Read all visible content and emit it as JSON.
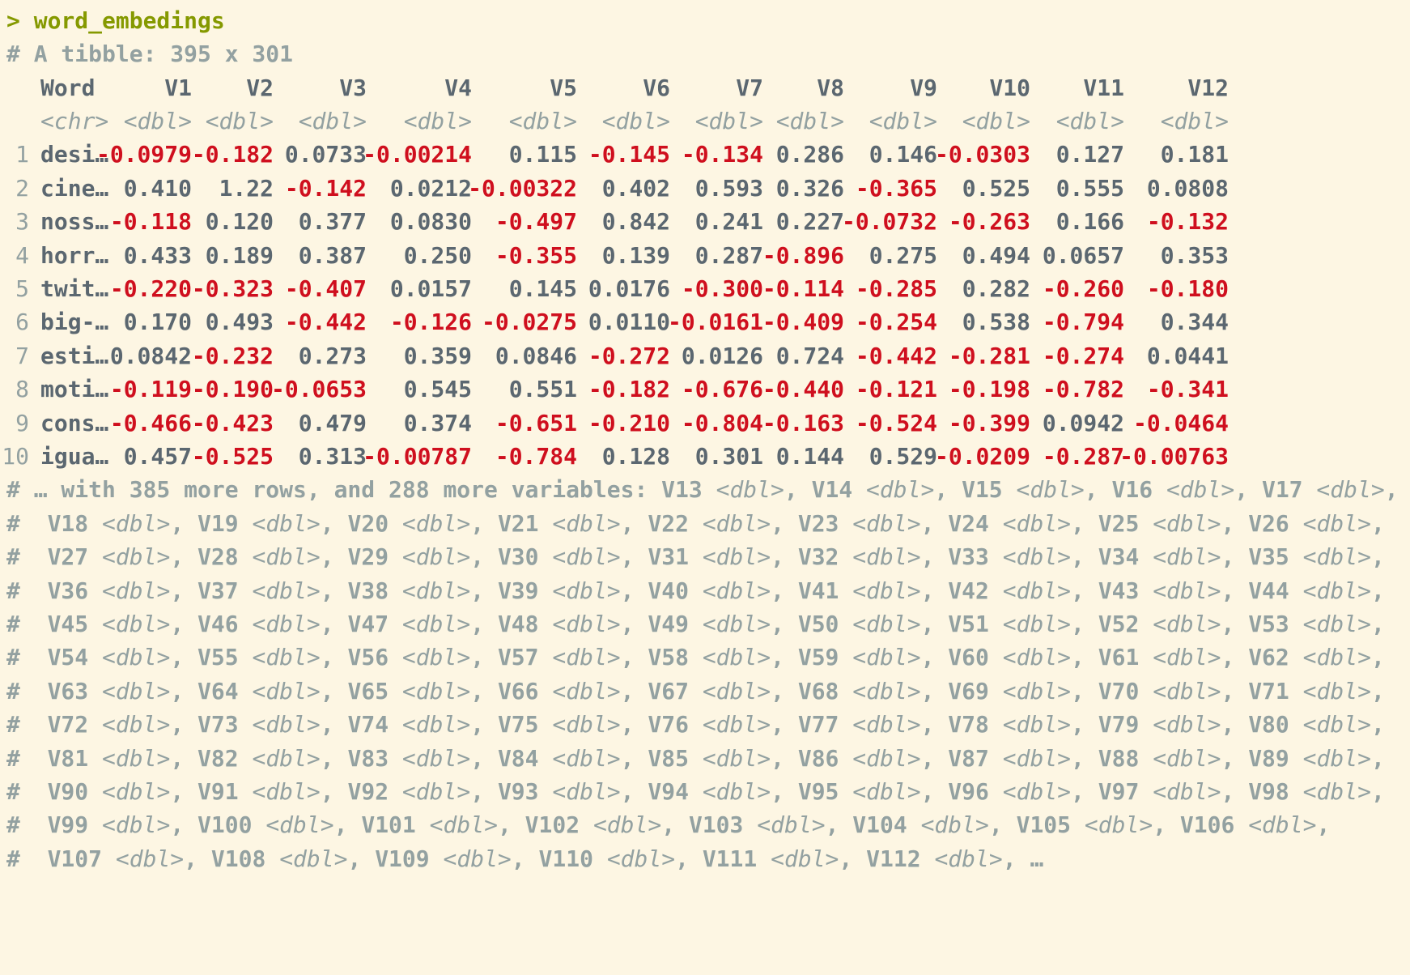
{
  "console": {
    "prompt": "> word_embedings",
    "tibble_header": "# A tibble: 395 x 301"
  },
  "table": {
    "columns": [
      "Word",
      "V1",
      "V2",
      "V3",
      "V4",
      "V5",
      "V6",
      "V7",
      "V8",
      "V9",
      "V10",
      "V11",
      "V12"
    ],
    "types": [
      "<chr>",
      "<dbl>",
      "<dbl>",
      "<dbl>",
      "<dbl>",
      "<dbl>",
      "<dbl>",
      "<dbl>",
      "<dbl>",
      "<dbl>",
      "<dbl>",
      "<dbl>",
      "<dbl>"
    ],
    "rows": [
      {
        "n": "1",
        "word": "desi…",
        "vals": [
          "-0.0979",
          "-0.182",
          "0.0733",
          "-0.00214",
          "0.115",
          "-0.145",
          "-0.134",
          "0.286",
          "0.146",
          "-0.0303",
          "0.127",
          "0.181"
        ]
      },
      {
        "n": "2",
        "word": "cine…",
        "vals": [
          "0.410",
          "1.22",
          "-0.142",
          "0.0212",
          "-0.00322",
          "0.402",
          "0.593",
          "0.326",
          "-0.365",
          "0.525",
          "0.555",
          "0.0808"
        ]
      },
      {
        "n": "3",
        "word": "noss…",
        "vals": [
          "-0.118",
          "0.120",
          "0.377",
          "0.0830",
          "-0.497",
          "0.842",
          "0.241",
          "0.227",
          "-0.0732",
          "-0.263",
          "0.166",
          "-0.132"
        ]
      },
      {
        "n": "4",
        "word": "horr…",
        "vals": [
          "0.433",
          "0.189",
          "0.387",
          "0.250",
          "-0.355",
          "0.139",
          "0.287",
          "-0.896",
          "0.275",
          "0.494",
          "0.0657",
          "0.353"
        ]
      },
      {
        "n": "5",
        "word": "twit…",
        "vals": [
          "-0.220",
          "-0.323",
          "-0.407",
          "0.0157",
          "0.145",
          "0.0176",
          "-0.300",
          "-0.114",
          "-0.285",
          "0.282",
          "-0.260",
          "-0.180"
        ]
      },
      {
        "n": "6",
        "word": "big-…",
        "vals": [
          "0.170",
          "0.493",
          "-0.442",
          "-0.126",
          "-0.0275",
          "0.0110",
          "-0.0161",
          "-0.409",
          "-0.254",
          "0.538",
          "-0.794",
          "0.344"
        ]
      },
      {
        "n": "7",
        "word": "esti…",
        "vals": [
          "0.0842",
          "-0.232",
          "0.273",
          "0.359",
          "0.0846",
          "-0.272",
          "0.0126",
          "0.724",
          "-0.442",
          "-0.281",
          "-0.274",
          "0.0441"
        ]
      },
      {
        "n": "8",
        "word": "moti…",
        "vals": [
          "-0.119",
          "-0.190",
          "-0.0653",
          "0.545",
          "0.551",
          "-0.182",
          "-0.676",
          "-0.440",
          "-0.121",
          "-0.198",
          "-0.782",
          "-0.341"
        ]
      },
      {
        "n": "9",
        "word": "cons…",
        "vals": [
          "-0.466",
          "-0.423",
          "0.479",
          "0.374",
          "-0.651",
          "-0.210",
          "-0.804",
          "-0.163",
          "-0.524",
          "-0.399",
          "0.0942",
          "-0.0464"
        ]
      },
      {
        "n": "10",
        "word": "igua…",
        "vals": [
          "0.457",
          "-0.525",
          "0.313",
          "-0.00787",
          "-0.784",
          "0.128",
          "0.301",
          "0.144",
          "0.529",
          "-0.0209",
          "-0.287",
          "-0.00763"
        ]
      }
    ]
  },
  "footer": {
    "summary_prefix": "# … with 385 more rows, and 288 more variables: ",
    "type_label": "<dbl>",
    "first_line_vars": [
      "V13",
      "V14",
      "V15",
      "V16",
      "V17"
    ],
    "lines": [
      [
        "V18",
        "V19",
        "V20",
        "V21",
        "V22",
        "V23",
        "V24",
        "V25",
        "V26"
      ],
      [
        "V27",
        "V28",
        "V29",
        "V30",
        "V31",
        "V32",
        "V33",
        "V34",
        "V35"
      ],
      [
        "V36",
        "V37",
        "V38",
        "V39",
        "V40",
        "V41",
        "V42",
        "V43",
        "V44"
      ],
      [
        "V45",
        "V46",
        "V47",
        "V48",
        "V49",
        "V50",
        "V51",
        "V52",
        "V53"
      ],
      [
        "V54",
        "V55",
        "V56",
        "V57",
        "V58",
        "V59",
        "V60",
        "V61",
        "V62"
      ],
      [
        "V63",
        "V64",
        "V65",
        "V66",
        "V67",
        "V68",
        "V69",
        "V70",
        "V71"
      ],
      [
        "V72",
        "V73",
        "V74",
        "V75",
        "V76",
        "V77",
        "V78",
        "V79",
        "V80"
      ],
      [
        "V81",
        "V82",
        "V83",
        "V84",
        "V85",
        "V86",
        "V87",
        "V88",
        "V89"
      ],
      [
        "V90",
        "V91",
        "V92",
        "V93",
        "V94",
        "V95",
        "V96",
        "V97",
        "V98"
      ],
      [
        "V99",
        "V100",
        "V101",
        "V102",
        "V103",
        "V104",
        "V105",
        "V106"
      ],
      [
        "V107",
        "V108",
        "V109",
        "V110",
        "V111",
        "V112"
      ]
    ],
    "ellipsis": "…"
  }
}
